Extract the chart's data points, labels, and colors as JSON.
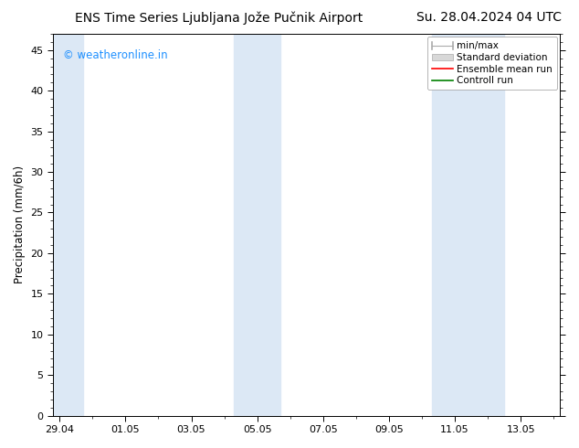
{
  "title_left": "ENS Time Series Ljubljana Jože Pučnik Airport",
  "title_right": "Su. 28.04.2024 04 UTC",
  "ylabel": "Precipitation (mm/6h)",
  "watermark": "© weatheronline.in",
  "watermark_color": "#1E90FF",
  "ylim": [
    0,
    47
  ],
  "yticks": [
    0,
    5,
    10,
    15,
    20,
    25,
    30,
    35,
    40,
    45
  ],
  "xtick_labels": [
    "29.04",
    "01.05",
    "03.05",
    "05.05",
    "07.05",
    "09.05",
    "11.05",
    "13.05"
  ],
  "xtick_positions": [
    0,
    2,
    4,
    6,
    8,
    10,
    12,
    14
  ],
  "xlim": [
    -0.2,
    15.2
  ],
  "bg_color": "#ffffff",
  "shaded_color": "#dce8f5",
  "shaded_bands": [
    [
      -0.2,
      0.7
    ],
    [
      5.3,
      6.7
    ],
    [
      11.3,
      12.0
    ],
    [
      12.0,
      13.5
    ]
  ],
  "legend_items": [
    {
      "label": "min/max",
      "color": "#aaaaaa",
      "type": "errorbar"
    },
    {
      "label": "Standard deviation",
      "color": "#cccccc",
      "type": "bar"
    },
    {
      "label": "Ensemble mean run",
      "color": "#ff0000",
      "type": "line"
    },
    {
      "label": "Controll run",
      "color": "#008000",
      "type": "line"
    }
  ],
  "title_fontsize": 10,
  "axis_fontsize": 8.5,
  "tick_fontsize": 8,
  "legend_fontsize": 7.5
}
